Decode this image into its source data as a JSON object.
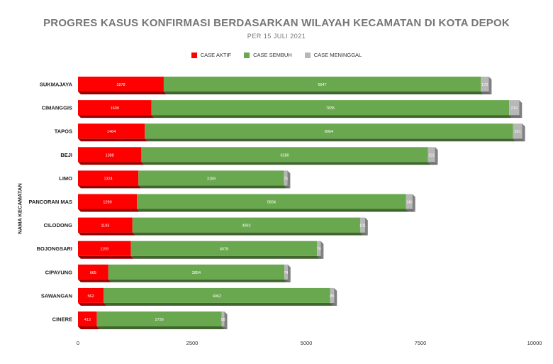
{
  "title": "PROGRES KASUS KONFIRMASI BERDASARKAN WILAYAH KECAMATAN DI KOTA DEPOK",
  "subtitle": "PER 15 JULI 2021",
  "legend": [
    "CASE AKTIF",
    "CASE SEMBUH",
    "CASE MENINGGAL"
  ],
  "chart_data": {
    "type": "bar",
    "orientation": "horizontal",
    "stacked": true,
    "title": "PROGRES KASUS KONFIRMASI BERDASARKAN WILAYAH KECAMATAN DI KOTA DEPOK",
    "subtitle": "PER 15 JULI 2021",
    "ylabel": "NAMA KECAMATAN",
    "xlabel": "",
    "xlim": [
      0,
      10000
    ],
    "xticks": [
      0,
      2500,
      5000,
      7500,
      10000
    ],
    "legend_position": "top",
    "categories": [
      "SUKMAJAYA",
      "CIMANGGIS",
      "TAPOS",
      "BEJI",
      "LIMO",
      "PANCORAN MAS",
      "CILODONG",
      "BOJONGSARI",
      "CIPAYUNG",
      "SAWANGAN",
      "CINERE"
    ],
    "series": [
      {
        "name": "CASE AKTIF",
        "color": "#ff0000",
        "values": [
          1878,
          1609,
          1464,
          1388,
          1324,
          1290,
          1193,
          1159,
          665,
          562,
          413
        ]
      },
      {
        "name": "CASE SEMBUH",
        "color": "#6aa84f",
        "values": [
          6947,
          7835,
          8064,
          6280,
          3189,
          5894,
          4992,
          4078,
          3854,
          4962,
          2736
        ]
      },
      {
        "name": "CASE MENINGGAL",
        "color": "#b7b7b7",
        "values": [
          172,
          219,
          201,
          151,
          74,
          140,
          101,
          79,
          74,
          85,
          58
        ]
      }
    ]
  }
}
